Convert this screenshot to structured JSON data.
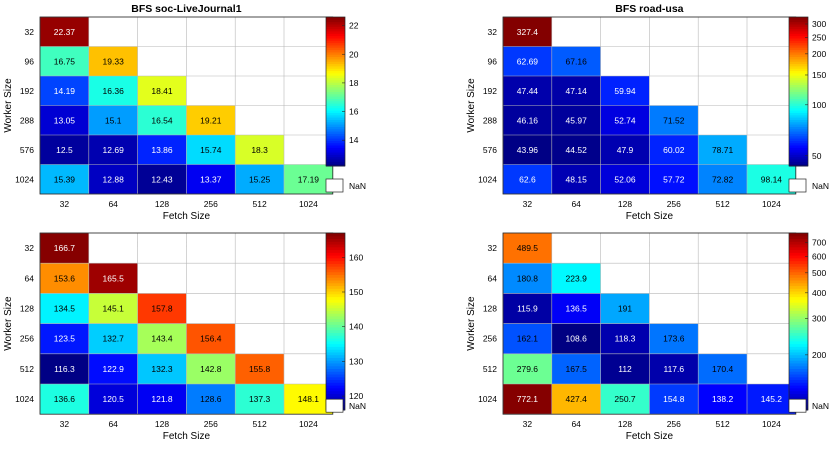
{
  "chart_data": [
    {
      "type": "heatmap",
      "title": "BFS soc-LiveJournal1",
      "xlabel": "Fetch Size",
      "ylabel": "Worker Size",
      "x_categories": [
        "32",
        "64",
        "128",
        "256",
        "512",
        "1024"
      ],
      "y_categories": [
        "32",
        "96",
        "192",
        "288",
        "576",
        "1024"
      ],
      "values": [
        [
          22.37,
          null,
          null,
          null,
          null,
          null
        ],
        [
          16.75,
          19.33,
          null,
          null,
          null,
          null
        ],
        [
          14.19,
          16.36,
          18.41,
          null,
          null,
          null
        ],
        [
          13.05,
          15.1,
          16.54,
          19.21,
          null,
          null
        ],
        [
          12.5,
          12.69,
          13.86,
          15.74,
          18.3,
          null
        ],
        [
          15.39,
          12.88,
          12.43,
          13.37,
          15.25,
          17.19
        ]
      ],
      "labels": [
        [
          "22.37",
          "",
          "",
          "",
          "",
          ""
        ],
        [
          "16.75",
          "19.33",
          "",
          "",
          "",
          ""
        ],
        [
          "14.19",
          "16.36",
          "18.41",
          "",
          "",
          ""
        ],
        [
          "13.05",
          "15.1",
          "16.54",
          "19.21",
          "",
          ""
        ],
        [
          "12.5",
          "12.69",
          "13.86",
          "15.74",
          "18.3",
          ""
        ],
        [
          "15.39",
          "12.88",
          "12.43",
          "13.37",
          "15.25",
          "17.19"
        ]
      ],
      "colorbar": {
        "scale": "linear",
        "range": [
          12.2,
          22.6
        ],
        "ticks": [
          14,
          16,
          18,
          20,
          22
        ],
        "tick_labels": [
          "14",
          "16",
          "18",
          "20",
          "22"
        ],
        "nan_label": "NaN"
      }
    },
    {
      "type": "heatmap",
      "title": "BFS road-usa",
      "xlabel": "Fetch Size",
      "ylabel": "Worker Size",
      "x_categories": [
        "32",
        "64",
        "128",
        "256",
        "512",
        "1024"
      ],
      "y_categories": [
        "32",
        "96",
        "192",
        "288",
        "576",
        "1024"
      ],
      "values": [
        [
          327.4,
          null,
          null,
          null,
          null,
          null
        ],
        [
          62.69,
          67.16,
          null,
          null,
          null,
          null
        ],
        [
          47.44,
          47.14,
          59.94,
          null,
          null,
          null
        ],
        [
          46.16,
          45.97,
          52.74,
          71.52,
          null,
          null
        ],
        [
          43.96,
          44.52,
          47.9,
          60.02,
          78.71,
          null
        ],
        [
          62.6,
          48.15,
          52.06,
          57.72,
          72.82,
          98.14
        ]
      ],
      "labels": [
        [
          "327.4",
          "",
          "",
          "",
          "",
          ""
        ],
        [
          "62.69",
          "67.16",
          "",
          "",
          "",
          ""
        ],
        [
          "47.44",
          "47.14",
          "59.94",
          "",
          "",
          ""
        ],
        [
          "46.16",
          "45.97",
          "52.74",
          "71.52",
          "",
          ""
        ],
        [
          "43.96",
          "44.52",
          "47.9",
          "60.02",
          "78.71",
          ""
        ],
        [
          "62.6",
          "48.15",
          "52.06",
          "57.72",
          "72.82",
          "98.14"
        ]
      ],
      "colorbar": {
        "scale": "log",
        "range": [
          43.5,
          330
        ],
        "ticks": [
          50,
          100,
          150,
          200,
          250,
          300
        ],
        "tick_labels": [
          "50",
          "100",
          "150",
          "200",
          "250",
          "300"
        ],
        "nan_label": "NaN"
      }
    },
    {
      "type": "heatmap",
      "title": "PageRank soc-LiveJournal1",
      "xlabel": "Fetch Size",
      "ylabel": "Worker Size",
      "x_categories": [
        "32",
        "64",
        "128",
        "256",
        "512",
        "1024"
      ],
      "y_categories": [
        "32",
        "64",
        "128",
        "256",
        "512",
        "1024"
      ],
      "values": [
        [
          166.7,
          null,
          null,
          null,
          null,
          null
        ],
        [
          153.6,
          165.5,
          null,
          null,
          null,
          null
        ],
        [
          134.5,
          145.1,
          157.8,
          null,
          null,
          null
        ],
        [
          123.5,
          132.7,
          143.4,
          156.4,
          null,
          null
        ],
        [
          116.3,
          122.9,
          132.3,
          142.8,
          155.8,
          null
        ],
        [
          136.6,
          120.5,
          121.8,
          128.6,
          137.3,
          148.1
        ]
      ],
      "labels": [
        [
          "166.7",
          "",
          "",
          "",
          "",
          ""
        ],
        [
          "153.6",
          "165.5",
          "",
          "",
          "",
          ""
        ],
        [
          "134.5",
          "145.1",
          "157.8",
          "",
          "",
          ""
        ],
        [
          "123.5",
          "132.7",
          "143.4",
          "156.4",
          "",
          ""
        ],
        [
          "116.3",
          "122.9",
          "132.3",
          "142.8",
          "155.8",
          ""
        ],
        [
          "136.6",
          "120.5",
          "121.8",
          "128.6",
          "137.3",
          "148.1"
        ]
      ],
      "colorbar": {
        "scale": "linear",
        "range": [
          116,
          167
        ],
        "ticks": [
          120,
          130,
          140,
          150,
          160
        ],
        "tick_labels": [
          "120",
          "130",
          "140",
          "150",
          "160"
        ],
        "nan_label": "NaN"
      }
    },
    {
      "type": "heatmap",
      "title": "PageRank road-usa",
      "xlabel": "Fetch Size",
      "ylabel": "Worker Size",
      "x_categories": [
        "32",
        "64",
        "128",
        "256",
        "512",
        "1024"
      ],
      "y_categories": [
        "32",
        "64",
        "128",
        "256",
        "512",
        "1024"
      ],
      "values": [
        [
          489.5,
          null,
          null,
          null,
          null,
          null
        ],
        [
          180.8,
          223.9,
          null,
          null,
          null,
          null
        ],
        [
          115.9,
          136.5,
          191,
          null,
          null,
          null
        ],
        [
          162.1,
          108.6,
          118.3,
          173.6,
          null,
          null
        ],
        [
          279.6,
          167.5,
          112,
          117.6,
          170.4,
          null
        ],
        [
          772.1,
          427.4,
          250.7,
          154.8,
          138.2,
          145.2
        ]
      ],
      "labels": [
        [
          "489.5",
          "",
          "",
          "",
          "",
          ""
        ],
        [
          "180.8",
          "223.9",
          "",
          "",
          "",
          ""
        ],
        [
          "115.9",
          "136.5",
          "191",
          "",
          "",
          ""
        ],
        [
          "162.1",
          "108.6",
          "118.3",
          "173.6",
          "",
          ""
        ],
        [
          "279.6",
          "167.5",
          "112",
          "117.6",
          "170.4",
          ""
        ],
        [
          "772.1",
          "427.4",
          "250.7",
          "154.8",
          "138.2",
          "145.2"
        ]
      ],
      "colorbar": {
        "scale": "log",
        "range": [
          108,
          780
        ],
        "ticks": [
          200,
          300,
          400,
          500,
          600,
          700
        ],
        "tick_labels": [
          "200",
          "300",
          "400",
          "500",
          "600",
          "700"
        ],
        "nan_label": "NaN"
      }
    }
  ]
}
